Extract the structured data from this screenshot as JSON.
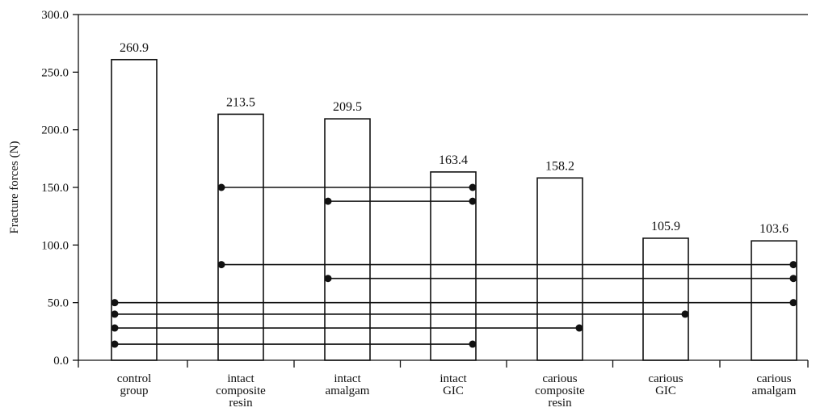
{
  "chart_data": {
    "type": "bar",
    "ylabel": "Fracture forces (N)",
    "xlabel": "",
    "ylim": [
      0,
      300
    ],
    "yticks": [
      "0.0",
      "50.0",
      "100.0",
      "150.0",
      "200.0",
      "250.0",
      "300.0"
    ],
    "categories": [
      [
        "control",
        "group"
      ],
      [
        "intact",
        "composite",
        "resin"
      ],
      [
        "intact",
        "amalgam"
      ],
      [
        "intact",
        "GIC"
      ],
      [
        "carious",
        "composite",
        "resin"
      ],
      [
        "carious",
        "GIC"
      ],
      [
        "carious",
        "amalgam"
      ]
    ],
    "values": [
      260.9,
      213.5,
      209.5,
      163.4,
      158.2,
      105.9,
      103.6
    ],
    "value_labels": [
      "260.9",
      "213.5",
      "209.5",
      "163.4",
      "158.2",
      "105.9",
      "103.6"
    ],
    "significance_pairs": [
      {
        "from": 1,
        "to": 3,
        "y": 150
      },
      {
        "from": 2,
        "to": 3,
        "y": 138
      },
      {
        "from": 1,
        "to": 6,
        "y": 83
      },
      {
        "from": 2,
        "to": 6,
        "y": 71
      },
      {
        "from": 0,
        "to": 6,
        "y": 50
      },
      {
        "from": 0,
        "to": 5,
        "y": 40
      },
      {
        "from": 0,
        "to": 4,
        "y": 28
      },
      {
        "from": 0,
        "to": 3,
        "y": 14
      }
    ]
  }
}
